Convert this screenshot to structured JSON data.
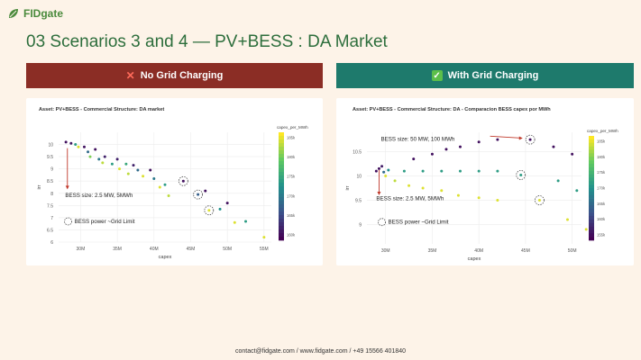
{
  "brand": {
    "name": "FIDgate",
    "icon": "fidgate-leaf-logo-icon",
    "color": "#4a8a3c"
  },
  "title": "03 Scenarios 3 and 4 — PV+BESS : DA Market",
  "banners": {
    "left": {
      "icon": "x-mark-icon",
      "label": "No Grid Charging",
      "color": "#8b2d25"
    },
    "right": {
      "icon": "check-box-icon",
      "label": "With Grid Charging",
      "color": "#1e7a6c"
    }
  },
  "chart_data": [
    {
      "type": "scatter",
      "title": "Asset: PV+BESS - Commercial Structure: DA market",
      "xlabel": "capex",
      "ylabel": "irr",
      "xlim": [
        27,
        56
      ],
      "ylim": [
        6,
        10.5
      ],
      "x_ticks": [
        "30M",
        "35M",
        "40M",
        "45M",
        "50M",
        "55M"
      ],
      "y_ticks": [
        "6",
        "6.5",
        "7",
        "7.5",
        "8",
        "8.5",
        "9",
        "9.5",
        "10"
      ],
      "colorbar": {
        "label": "capex_per_MWh",
        "ticks": [
          "185k",
          "180k",
          "175k",
          "170k",
          "165k",
          "160k"
        ],
        "colormap": "viridis"
      },
      "annotations": {
        "bess_size": "BESS size: 2.5 MW, 5MWh",
        "legend": "BESS power ~Grid Limit"
      },
      "circled_points": [
        [
          44,
          8.5
        ],
        [
          46,
          7.95
        ],
        [
          47.5,
          7.3
        ]
      ],
      "points": [
        {
          "x": 28.0,
          "y": 10.1,
          "c": 0.05
        },
        {
          "x": 28.7,
          "y": 10.05,
          "c": 0.07
        },
        {
          "x": 29.3,
          "y": 10.0,
          "c": 0.55
        },
        {
          "x": 29.7,
          "y": 9.9,
          "c": 0.95
        },
        {
          "x": 30.5,
          "y": 9.9,
          "c": 0.06
        },
        {
          "x": 31.0,
          "y": 9.7,
          "c": 0.35
        },
        {
          "x": 31.3,
          "y": 9.5,
          "c": 0.8
        },
        {
          "x": 32.0,
          "y": 9.8,
          "c": 0.05
        },
        {
          "x": 32.5,
          "y": 9.4,
          "c": 0.4
        },
        {
          "x": 33.3,
          "y": 9.5,
          "c": 0.1
        },
        {
          "x": 33.0,
          "y": 9.25,
          "c": 0.9
        },
        {
          "x": 34.3,
          "y": 9.2,
          "c": 0.55
        },
        {
          "x": 35.0,
          "y": 9.4,
          "c": 0.1
        },
        {
          "x": 35.3,
          "y": 9.0,
          "c": 0.95
        },
        {
          "x": 36.2,
          "y": 9.2,
          "c": 0.6
        },
        {
          "x": 36.5,
          "y": 8.8,
          "c": 0.9
        },
        {
          "x": 37.2,
          "y": 9.15,
          "c": 0.1
        },
        {
          "x": 37.8,
          "y": 8.95,
          "c": 0.35
        },
        {
          "x": 38.5,
          "y": 8.7,
          "c": 0.95
        },
        {
          "x": 39.5,
          "y": 8.95,
          "c": 0.05
        },
        {
          "x": 40.0,
          "y": 8.6,
          "c": 0.4
        },
        {
          "x": 40.8,
          "y": 8.25,
          "c": 0.95
        },
        {
          "x": 41.5,
          "y": 8.35,
          "c": 0.55
        },
        {
          "x": 42.0,
          "y": 7.9,
          "c": 0.9
        },
        {
          "x": 44.0,
          "y": 8.5,
          "c": 0.05
        },
        {
          "x": 46.0,
          "y": 7.95,
          "c": 0.3
        },
        {
          "x": 47.5,
          "y": 7.3,
          "c": 0.95
        },
        {
          "x": 47.0,
          "y": 8.1,
          "c": 0.05
        },
        {
          "x": 49.0,
          "y": 7.35,
          "c": 0.5
        },
        {
          "x": 50.0,
          "y": 7.6,
          "c": 0.05
        },
        {
          "x": 51.0,
          "y": 6.8,
          "c": 0.95
        },
        {
          "x": 52.5,
          "y": 6.85,
          "c": 0.55
        },
        {
          "x": 55.0,
          "y": 6.2,
          "c": 0.95
        }
      ]
    },
    {
      "type": "scatter",
      "title": "Asset: PV+BESS - Commercial Structure: DA -  Comparacion BESS capex por MWh",
      "xlabel": "capex",
      "ylabel": "irr",
      "xlim": [
        28,
        51
      ],
      "ylim": [
        8.6,
        10.9
      ],
      "x_ticks": [
        "30M",
        "35M",
        "40M",
        "45M",
        "50M"
      ],
      "y_ticks": [
        "9",
        "9.5",
        "10",
        "10.5"
      ],
      "colorbar": {
        "label": "capex_per_MWh",
        "ticks": [
          "185k",
          "180k",
          "175k",
          "170k",
          "165k",
          "160k",
          "155k"
        ],
        "colormap": "viridis"
      },
      "annotations": {
        "bess_size_top": "BESS size: 50 MW, 100 MWh",
        "bess_size_bottom": "BESS size: 2.5 MW, 5MWh",
        "legend": "BESS power ~Grid Limit"
      },
      "circled_points": [
        [
          45.5,
          10.75
        ],
        [
          44.5,
          10.02
        ],
        [
          46.5,
          9.5
        ]
      ],
      "points": [
        {
          "x": 29.0,
          "y": 10.1,
          "c": 0.05
        },
        {
          "x": 29.3,
          "y": 10.15,
          "c": 0.05
        },
        {
          "x": 29.6,
          "y": 10.2,
          "c": 0.08
        },
        {
          "x": 29.8,
          "y": 10.08,
          "c": 0.35
        },
        {
          "x": 30.0,
          "y": 10.0,
          "c": 0.95
        },
        {
          "x": 30.3,
          "y": 10.12,
          "c": 0.5
        },
        {
          "x": 31.0,
          "y": 9.9,
          "c": 0.9
        },
        {
          "x": 32.0,
          "y": 10.1,
          "c": 0.55
        },
        {
          "x": 32.5,
          "y": 9.8,
          "c": 0.95
        },
        {
          "x": 34.0,
          "y": 10.1,
          "c": 0.55
        },
        {
          "x": 34.0,
          "y": 9.75,
          "c": 0.95
        },
        {
          "x": 36.0,
          "y": 10.1,
          "c": 0.55
        },
        {
          "x": 36.0,
          "y": 9.7,
          "c": 0.95
        },
        {
          "x": 37.8,
          "y": 9.6,
          "c": 0.95
        },
        {
          "x": 38.0,
          "y": 10.1,
          "c": 0.55
        },
        {
          "x": 40.0,
          "y": 10.1,
          "c": 0.55
        },
        {
          "x": 40.0,
          "y": 9.55,
          "c": 0.95
        },
        {
          "x": 42.0,
          "y": 10.1,
          "c": 0.55
        },
        {
          "x": 42.0,
          "y": 9.5,
          "c": 0.95
        },
        {
          "x": 44.5,
          "y": 10.02,
          "c": 0.55
        },
        {
          "x": 46.5,
          "y": 9.5,
          "c": 0.95
        },
        {
          "x": 35.0,
          "y": 10.45,
          "c": 0.05
        },
        {
          "x": 36.5,
          "y": 10.55,
          "c": 0.05
        },
        {
          "x": 38.0,
          "y": 10.6,
          "c": 0.05
        },
        {
          "x": 40.0,
          "y": 10.7,
          "c": 0.05
        },
        {
          "x": 42.0,
          "y": 10.75,
          "c": 0.05
        },
        {
          "x": 45.5,
          "y": 10.75,
          "c": 0.05
        },
        {
          "x": 48.0,
          "y": 10.6,
          "c": 0.05
        },
        {
          "x": 50.0,
          "y": 10.45,
          "c": 0.05
        },
        {
          "x": 33.0,
          "y": 10.35,
          "c": 0.05
        },
        {
          "x": 48.5,
          "y": 9.9,
          "c": 0.55
        },
        {
          "x": 50.5,
          "y": 9.7,
          "c": 0.55
        },
        {
          "x": 49.5,
          "y": 9.1,
          "c": 0.95
        },
        {
          "x": 51.5,
          "y": 8.9,
          "c": 0.95
        }
      ]
    }
  ],
  "footer": "contact@fidgate.com / www.fidgate.com / +49 15566 401840"
}
